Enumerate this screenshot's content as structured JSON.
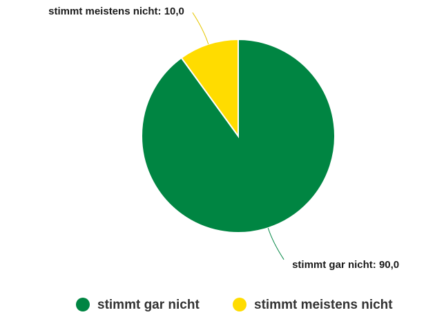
{
  "chart_data": {
    "type": "pie",
    "categories": [
      "stimmt gar nicht",
      "stimmt meistens nicht"
    ],
    "values": [
      90,
      10
    ],
    "value_labels": [
      "stimmt gar nicht: 90,0",
      "stimmt meistens nicht: 10,0"
    ],
    "colors": [
      "#008542",
      "#ffdc00"
    ],
    "legend": "bottom"
  }
}
